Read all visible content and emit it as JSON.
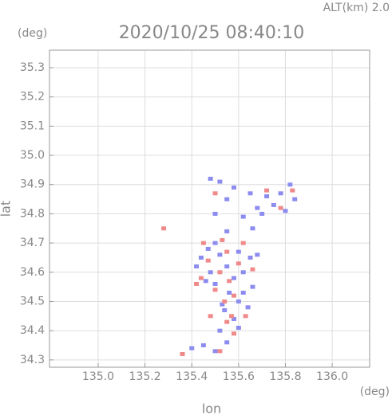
{
  "chart_data": {
    "type": "scatter",
    "title": "2020/10/25 08:40:10",
    "altitude_label": "ALT(km) 2.0",
    "y_unit": "(deg)",
    "x_unit": "(deg)",
    "xlabel": "lon",
    "ylabel": "lat",
    "xlim": [
      134.792,
      136.16
    ],
    "ylim": [
      34.275,
      35.36
    ],
    "xticks": [
      {
        "value": 135,
        "label": "135.0"
      },
      135.2,
      135.4,
      135.6,
      135.8,
      {
        "value": 136,
        "label": "136.0"
      }
    ],
    "yticks": [
      34.3,
      34.4,
      34.5,
      34.6,
      34.7,
      34.8,
      34.9,
      {
        "value": 35,
        "label": "35.0"
      },
      35.1,
      35.2,
      35.3
    ],
    "grid": true,
    "series": [
      {
        "color": "#8c8cf0",
        "x": [
          135.48,
          135.52,
          135.58,
          135.65,
          135.72,
          135.78,
          135.82,
          135.84,
          135.75,
          135.68,
          135.55,
          135.5,
          135.62,
          135.66,
          135.55,
          135.5,
          135.47,
          135.44,
          135.52,
          135.6,
          135.65,
          135.55,
          135.48,
          135.58,
          135.62,
          135.5,
          135.56,
          135.6,
          135.64,
          135.54,
          135.58,
          135.6,
          135.52,
          135.45,
          135.4,
          135.5,
          135.55,
          135.68,
          135.42,
          135.46,
          135.66,
          135.53,
          135.62,
          135.7,
          135.8
        ],
        "y": [
          34.92,
          34.91,
          34.89,
          34.87,
          34.86,
          34.87,
          34.9,
          34.85,
          34.83,
          34.82,
          34.85,
          34.8,
          34.79,
          34.75,
          34.74,
          34.7,
          34.68,
          34.65,
          34.66,
          34.67,
          34.65,
          34.62,
          34.6,
          34.58,
          34.6,
          34.56,
          34.53,
          34.5,
          34.48,
          34.47,
          34.44,
          34.41,
          34.4,
          34.35,
          34.34,
          34.33,
          34.36,
          34.66,
          34.62,
          34.57,
          34.55,
          34.49,
          34.53,
          34.8,
          34.81
        ]
      },
      {
        "color": "#f08a8a",
        "x": [
          135.28,
          135.36,
          135.52,
          135.47,
          135.55,
          135.6,
          135.52,
          135.56,
          135.5,
          135.58,
          135.54,
          135.48,
          135.55,
          135.58,
          135.63,
          135.44,
          135.66,
          135.62,
          135.78,
          135.83,
          135.72,
          135.5,
          135.45,
          135.53,
          135.57,
          135.42
        ],
        "y": [
          34.75,
          34.32,
          34.33,
          34.64,
          34.67,
          34.63,
          34.6,
          34.57,
          34.54,
          34.52,
          34.5,
          34.45,
          34.43,
          34.39,
          34.45,
          34.58,
          34.61,
          34.7,
          34.82,
          34.88,
          34.88,
          34.87,
          34.7,
          34.71,
          34.45,
          34.56
        ]
      }
    ]
  }
}
